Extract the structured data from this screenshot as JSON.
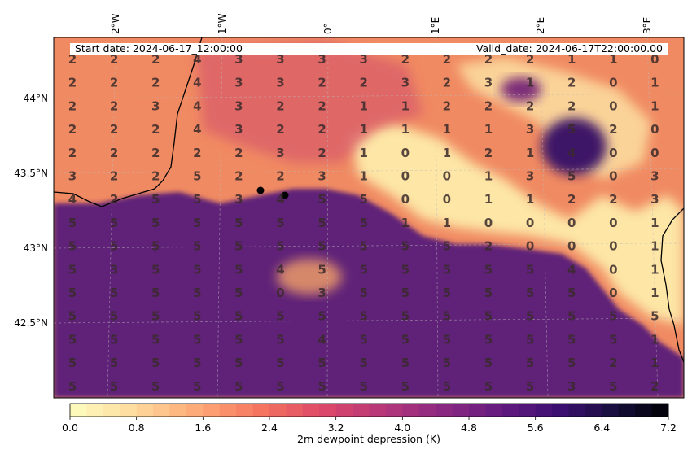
{
  "header": {
    "start_label": "Start date: 2024-06-17_12:00:00",
    "valid_label": "Valid_date: 2024-06-17T22:00:00.00"
  },
  "map": {
    "lon_labels": [
      "2°W",
      "1°W",
      "0°",
      "1°E",
      "2°E",
      "3°E"
    ],
    "lat_labels": [
      "44°N",
      "43.5°N",
      "43°N",
      "42.5°N"
    ],
    "grid_values": [
      [
        2,
        2,
        2,
        4,
        3,
        3,
        3,
        3,
        2,
        2,
        2,
        2,
        1,
        1,
        0
      ],
      [
        2,
        2,
        2,
        4,
        3,
        3,
        2,
        2,
        3,
        2,
        3,
        1,
        2,
        0,
        1
      ],
      [
        2,
        2,
        3,
        4,
        3,
        2,
        2,
        1,
        1,
        2,
        2,
        2,
        2,
        0,
        1
      ],
      [
        2,
        2,
        2,
        4,
        3,
        2,
        2,
        1,
        1,
        1,
        1,
        3,
        5,
        2,
        0
      ],
      [
        2,
        2,
        2,
        2,
        2,
        3,
        2,
        1,
        0,
        1,
        2,
        1,
        4,
        0,
        0
      ],
      [
        3,
        2,
        2,
        5,
        2,
        2,
        3,
        1,
        0,
        0,
        1,
        3,
        5,
        0,
        3
      ],
      [
        4,
        2,
        5,
        5,
        3,
        4,
        5,
        5,
        0,
        0,
        1,
        1,
        2,
        2,
        3
      ],
      [
        5,
        5,
        5,
        5,
        5,
        5,
        5,
        5,
        1,
        1,
        0,
        0,
        0,
        0,
        1
      ],
      [
        5,
        5,
        5,
        5,
        5,
        5,
        5,
        5,
        5,
        5,
        2,
        0,
        0,
        0,
        1
      ],
      [
        5,
        3,
        5,
        5,
        5,
        4,
        5,
        5,
        5,
        5,
        5,
        5,
        4,
        0,
        1
      ],
      [
        5,
        5,
        5,
        5,
        5,
        0,
        3,
        5,
        5,
        5,
        5,
        5,
        5,
        0,
        1
      ],
      [
        5,
        5,
        5,
        5,
        5,
        5,
        5,
        5,
        5,
        5,
        5,
        5,
        5,
        5,
        5
      ],
      [
        5,
        5,
        5,
        5,
        5,
        5,
        4,
        5,
        5,
        5,
        5,
        5,
        5,
        5,
        1
      ],
      [
        5,
        5,
        5,
        5,
        5,
        5,
        5,
        5,
        5,
        5,
        5,
        5,
        5,
        2,
        1
      ],
      [
        5,
        5,
        5,
        5,
        5,
        5,
        5,
        5,
        5,
        5,
        5,
        5,
        3,
        5,
        2
      ]
    ],
    "colors": {
      "low": "#fde9ae",
      "mid": "#ef7a5e",
      "high": "#5a1f78",
      "coast": "#000000"
    }
  },
  "colorbar": {
    "ticks": [
      "0.0",
      "0.8",
      "1.6",
      "2.4",
      "3.2",
      "4.0",
      "4.8",
      "5.6",
      "6.4",
      "7.2"
    ],
    "label": "2m dewpoint depression (K)",
    "min": 0,
    "max": 7.2,
    "levels": 36
  }
}
